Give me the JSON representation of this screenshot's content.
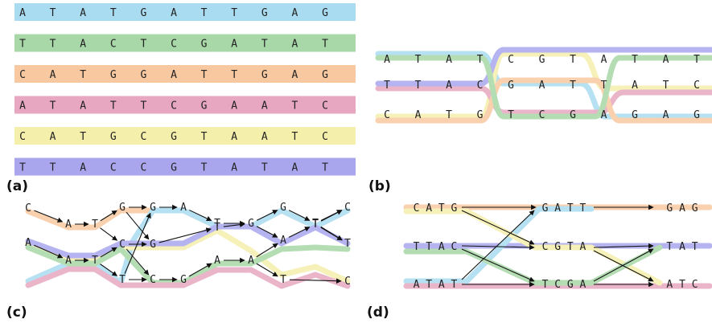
{
  "colors": {
    "blue": "#a9dcf0",
    "green": "#a8d8a8",
    "orange": "#f8c9a0",
    "pink": "#e7a7c0",
    "yellow": "#f5efac",
    "purple": "#a9a6ee"
  },
  "panel_a": {
    "label": "(a)",
    "rows": [
      {
        "color": "blue",
        "letters": [
          "A",
          "T",
          "A",
          "T",
          "G",
          "A",
          "T",
          "T",
          "G",
          "A",
          "G"
        ]
      },
      {
        "color": "green",
        "letters": [
          "T",
          "T",
          "A",
          "C",
          "T",
          "C",
          "G",
          "A",
          "T",
          "A",
          "T"
        ]
      },
      {
        "color": "orange",
        "letters": [
          "C",
          "A",
          "T",
          "G",
          "G",
          "A",
          "T",
          "T",
          "G",
          "A",
          "G"
        ]
      },
      {
        "color": "pink",
        "letters": [
          "A",
          "T",
          "A",
          "T",
          "T",
          "C",
          "G",
          "A",
          "A",
          "T",
          "C"
        ]
      },
      {
        "color": "yellow",
        "letters": [
          "C",
          "A",
          "T",
          "G",
          "C",
          "G",
          "T",
          "A",
          "A",
          "T",
          "C"
        ]
      },
      {
        "color": "purple",
        "letters": [
          "T",
          "T",
          "A",
          "C",
          "C",
          "G",
          "T",
          "A",
          "T",
          "A",
          "T"
        ]
      }
    ]
  },
  "panel_b": {
    "label": "(b)",
    "rows": [
      [
        "A",
        "T",
        "A",
        "T",
        "C",
        "G",
        "T",
        "A",
        "T",
        "A",
        "T"
      ],
      [
        "T",
        "T",
        "A",
        "C",
        "G",
        "A",
        "T",
        "T",
        "A",
        "T",
        "C"
      ],
      [
        "C",
        "A",
        "T",
        "G",
        "T",
        "C",
        "G",
        "A",
        "G",
        "A",
        "G"
      ]
    ]
  },
  "panel_c": {
    "label": "(c)",
    "letters": [
      "C",
      "A",
      "T",
      "G",
      "G",
      "A",
      "T",
      "G",
      "G",
      "T",
      "C",
      "C",
      "G",
      "T",
      "A",
      "T",
      "T",
      "A",
      "A",
      "T",
      "T",
      "C",
      "G",
      "A",
      "A",
      "T",
      "C"
    ]
  },
  "panel_d": {
    "label": "(d)",
    "rows": [
      [
        "C A T G",
        "G A T T",
        "G A G"
      ],
      [
        "T T A C",
        "C G T A",
        "T A T"
      ],
      [
        "A T A T",
        "T C G A",
        "A T C"
      ]
    ]
  }
}
